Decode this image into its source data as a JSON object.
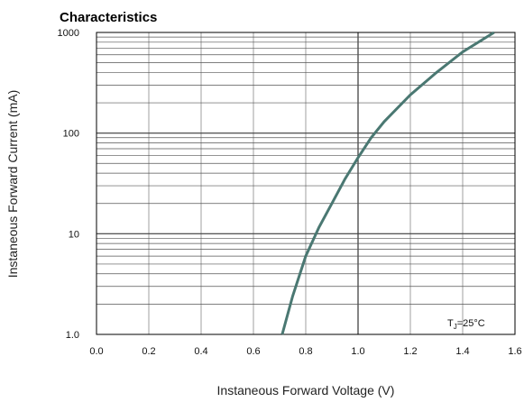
{
  "chart_data": {
    "type": "line",
    "title": "Characteristics",
    "xlabel": "Instaneous Forward Voltage (V)",
    "ylabel": "Instaneous Forward Current (mA)",
    "x_scale": "linear",
    "y_scale": "log",
    "xlim": [
      0.0,
      1.6
    ],
    "ylim": [
      1.0,
      1000
    ],
    "x_ticks": [
      "0.0",
      "0.2",
      "0.4",
      "0.6",
      "0.8",
      "1.0",
      "1.2",
      "1.4",
      "1.6"
    ],
    "y_ticks": [
      "1.0",
      "10",
      "100",
      "1000"
    ],
    "grid": true,
    "annotation": {
      "base": "T",
      "sub": "J",
      "rest": "=25°C"
    },
    "series": [
      {
        "color": "#4a7872",
        "x": [
          0.71,
          0.75,
          0.8,
          0.85,
          0.9,
          0.95,
          1.0,
          1.05,
          1.1,
          1.2,
          1.3,
          1.4,
          1.52
        ],
        "y": [
          1.0,
          2.4,
          6.0,
          11.5,
          20,
          35,
          57,
          90,
          130,
          240,
          400,
          640,
          1000
        ]
      }
    ]
  }
}
